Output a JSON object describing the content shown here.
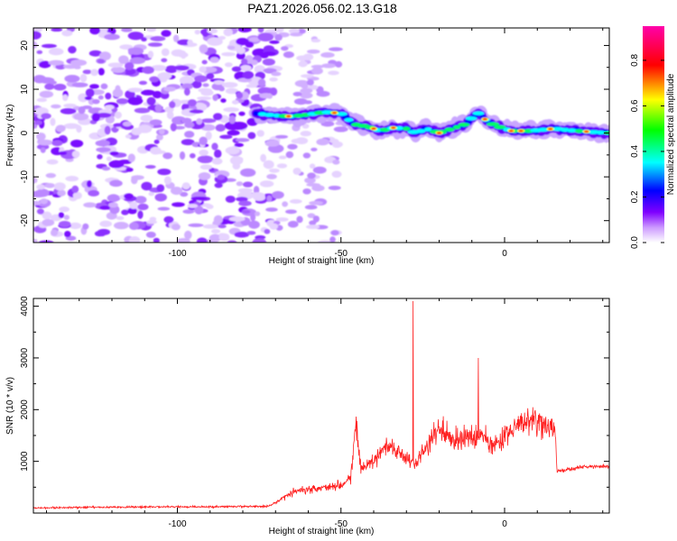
{
  "title": "PAZ1.2026.056.02.13.G18",
  "chart_data": [
    {
      "type": "heatmap",
      "title": "PAZ1.2026.056.02.13.G18",
      "xlabel": "Height of straight line (km)",
      "ylabel": "Frequency (Hz)",
      "xlim": [
        -144,
        32
      ],
      "ylim": [
        -25,
        24
      ],
      "xticks": [
        -100,
        -50,
        0
      ],
      "yticks": [
        20,
        10,
        0,
        -10,
        -20
      ],
      "colorbar": {
        "label": "Normalized spectral amplitude",
        "range": [
          0.0,
          0.95
        ],
        "ticks": [
          0.0,
          0.2,
          0.4,
          0.6,
          0.8
        ],
        "tick_labels": [
          "0.0",
          "0.2",
          "0.4",
          "0.6",
          "0.8"
        ],
        "colors": [
          "#ffffff",
          "#cc99ff",
          "#7f00ff",
          "#0000ff",
          "#00ffff",
          "#00ff00",
          "#ffff00",
          "#ff0000",
          "#ff00aa"
        ]
      },
      "ridge_line": {
        "x": [
          -76,
          -70,
          -65,
          -60,
          -55,
          -50,
          -46,
          -42,
          -38,
          -34,
          -30,
          -27,
          -24,
          -20,
          -16,
          -12,
          -10,
          -8,
          -5,
          -2,
          2,
          8,
          15,
          22,
          32
        ],
        "y": [
          4.5,
          4.0,
          3.8,
          4.2,
          4.8,
          4.5,
          2.0,
          1.5,
          0.5,
          1.2,
          1.0,
          0.0,
          1.0,
          0.0,
          1.0,
          2.0,
          3.5,
          4.5,
          2.5,
          1.5,
          0.5,
          0.5,
          1.0,
          0.5,
          0.0
        ]
      },
      "noise_region": {
        "x": [
          -144,
          -72
        ],
        "y": [
          -25,
          24
        ]
      },
      "sparse_noise_region": {
        "x": [
          -72,
          -50
        ],
        "y": [
          -25,
          24
        ]
      }
    },
    {
      "type": "line",
      "xlabel": "Height of straight line (km)",
      "ylabel": "SNR (10 * v/v)",
      "xlim": [
        -144,
        32
      ],
      "ylim": [
        0,
        4150
      ],
      "xticks": [
        -100,
        -50,
        0
      ],
      "yticks": [
        1000,
        2000,
        3000,
        4000
      ],
      "color": "#ff2020",
      "envelope": {
        "x": [
          -144,
          -110,
          -90,
          -75,
          -72,
          -65,
          -60,
          -55,
          -50,
          -47,
          -45.5,
          -44,
          -40,
          -36,
          -32,
          -28,
          -24,
          -20,
          -16,
          -12,
          -8,
          -6,
          -4,
          0,
          4,
          8,
          12,
          15.5,
          16,
          20,
          25,
          32
        ],
        "y": [
          100,
          120,
          120,
          130,
          130,
          400,
          470,
          500,
          550,
          700,
          1700,
          850,
          1000,
          1300,
          1200,
          950,
          1250,
          1650,
          1400,
          1450,
          1500,
          1450,
          1300,
          1500,
          1700,
          1800,
          1700,
          1600,
          800,
          850,
          900,
          900
        ]
      },
      "spikes": [
        {
          "x": -28,
          "y": 4100
        },
        {
          "x": -8,
          "y": 3000
        },
        {
          "x": -45.5,
          "y": 1700
        }
      ]
    }
  ]
}
